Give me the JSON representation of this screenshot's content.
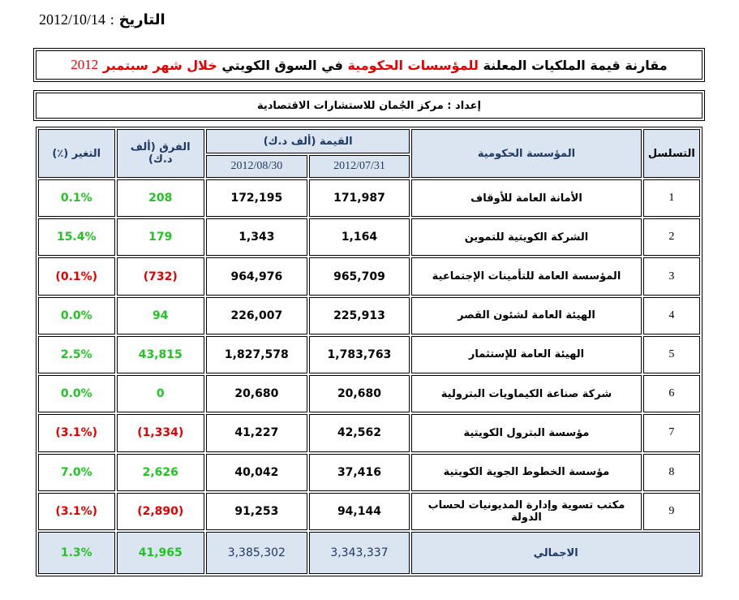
{
  "header": {
    "date_label": "التاريخ",
    "date_sep": " : ",
    "date_value": "2012/10/14"
  },
  "title": {
    "part1": "مقارنة قيمة الملكيات المعلنة",
    "part2": "للمؤسسات الحكومية",
    "part3": "في السوق الكويتي",
    "part4": "خلال شهر سبتمبر",
    "year": "2012"
  },
  "author": "إعداد : مركز الجُمان للاستشارات الاقتصادية",
  "columns": {
    "serial": "التسلسل",
    "institution": "المؤسسة الحكومية",
    "value": "القيمة (ألف د.ك)",
    "date1": "2012/07/31",
    "date2": "2012/08/30",
    "difference": "الفرق (ألف د.ك)",
    "change": "التغير (٪)"
  },
  "rows": [
    {
      "serial": "1",
      "name": "الأمانة العامة للأوقاف",
      "v1": "171,987",
      "v2": "172,195",
      "diff": "208",
      "change": "0.1%",
      "sign": "pos"
    },
    {
      "serial": "2",
      "name": "الشركة الكويتية للتموين",
      "v1": "1,164",
      "v2": "1,343",
      "diff": "179",
      "change": "15.4%",
      "sign": "pos"
    },
    {
      "serial": "3",
      "name": "المؤسسة العامة للتأمينات الإجتماعية",
      "v1": "965,709",
      "v2": "964,976",
      "diff": "(732)",
      "change": "(0.1%)",
      "sign": "neg"
    },
    {
      "serial": "4",
      "name": "الهيئة العامة لشئون القصر",
      "v1": "225,913",
      "v2": "226,007",
      "diff": "94",
      "change": "0.0%",
      "sign": "pos"
    },
    {
      "serial": "5",
      "name": "الهيئة العامة للإستثمار",
      "v1": "1,783,763",
      "v2": "1,827,578",
      "diff": "43,815",
      "change": "2.5%",
      "sign": "pos"
    },
    {
      "serial": "6",
      "name": "شركة صناعة الكيماويات البترولية",
      "v1": "20,680",
      "v2": "20,680",
      "diff": "0",
      "change": "0.0%",
      "sign": "pos"
    },
    {
      "serial": "7",
      "name": "مؤسسة البترول الكويتية",
      "v1": "42,562",
      "v2": "41,227",
      "diff": "(1,334)",
      "change": "(3.1%)",
      "sign": "neg"
    },
    {
      "serial": "8",
      "name": "مؤسسة الخطوط الجوية الكويتية",
      "v1": "37,416",
      "v2": "40,042",
      "diff": "2,626",
      "change": "7.0%",
      "sign": "pos"
    },
    {
      "serial": "9",
      "name": "مكتب تسوية وإدارة المديونيات لحساب الدولة",
      "v1": "94,144",
      "v2": "91,253",
      "diff": "(2,890)",
      "change": "(3.1%)",
      "sign": "neg"
    }
  ],
  "total": {
    "label": "الاجمالي",
    "v1": "3,343,337",
    "v2": "3,385,302",
    "diff": "41,965",
    "change": "1.3%"
  },
  "colors": {
    "positive": "#22c322",
    "negative": "#e00000",
    "header_bg": "#dbe5f1",
    "title_red": "#e30000"
  }
}
